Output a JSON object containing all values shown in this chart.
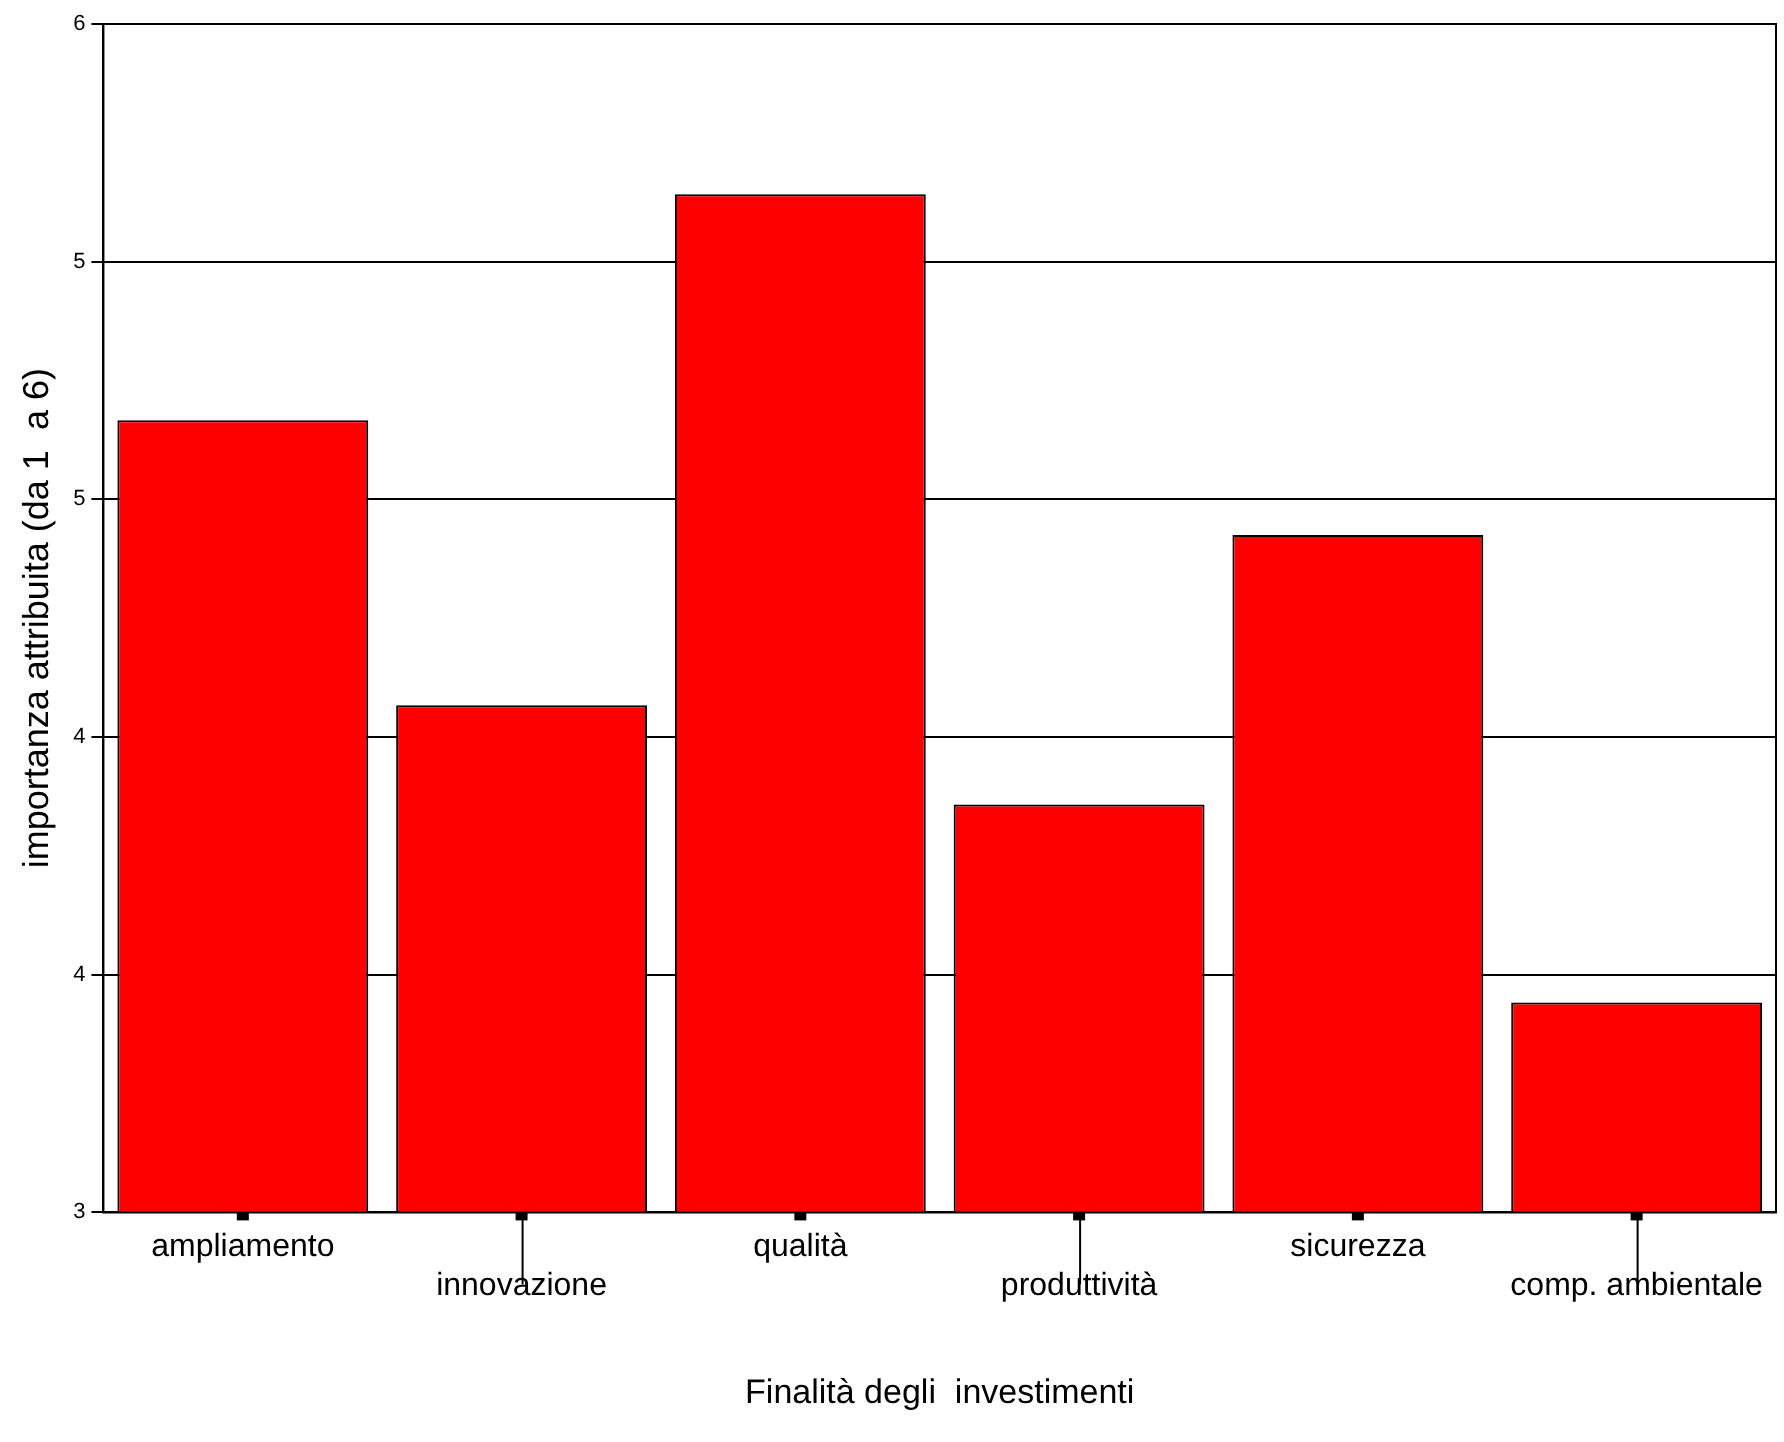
{
  "chart_data": {
    "type": "bar",
    "xlabel": "Finalità degli  investimenti",
    "ylabel": "importanza attribuita (da 1  a 6)",
    "categories": [
      "ampliamento",
      "innovazione",
      "qualità",
      "produttività",
      "sicurezza",
      "comp. ambientale"
    ],
    "values": [
      5.0,
      4.28,
      5.57,
      4.03,
      4.71,
      3.53
    ],
    "color": "#ff0000",
    "ylim": [
      3,
      6
    ],
    "yticks": [
      3,
      {
        "value": 3.6,
        "label": "4"
      },
      {
        "value": 4.2,
        "label": "4"
      },
      {
        "value": 4.8,
        "label": "5"
      },
      {
        "value": 5.4,
        "label": "5"
      },
      6
    ],
    "grid": "y",
    "legend": false
  }
}
